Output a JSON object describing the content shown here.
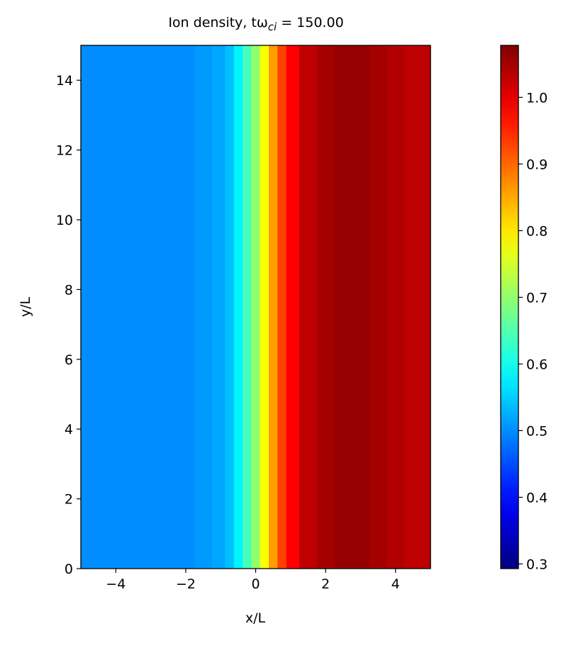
{
  "chart_data": {
    "type": "heatmap",
    "title": "Ion density, tω",
    "title_subscript": "ci",
    "title_suffix": " = 150.00",
    "x_label": "x/L",
    "y_label": "y/L",
    "x": [
      -5,
      -4,
      -3,
      -2,
      -1.5,
      -1,
      -0.75,
      -0.5,
      -0.25,
      0,
      0.25,
      0.5,
      0.75,
      1,
      1.5,
      2,
      2.5,
      3,
      3.5,
      4,
      4.5,
      5
    ],
    "values": [
      0.5,
      0.5,
      0.5,
      0.5,
      0.51,
      0.52,
      0.54,
      0.58,
      0.64,
      0.7,
      0.78,
      0.86,
      0.93,
      0.98,
      1.03,
      1.05,
      1.06,
      1.06,
      1.05,
      1.04,
      1.03,
      1.03
    ],
    "colormap": "jet",
    "xlim": [
      -5,
      5
    ],
    "ylim": [
      0,
      15
    ],
    "clim": [
      0.293,
      1.078
    ],
    "xticks": [
      {
        "value": -4,
        "label": "−4"
      },
      {
        "value": -2,
        "label": "−2"
      },
      0,
      2,
      4
    ],
    "yticks": [
      0,
      2,
      4,
      6,
      8,
      10,
      12,
      14
    ],
    "cticks": [
      0.3,
      0.4,
      0.5,
      0.6,
      0.7,
      0.8,
      0.9,
      {
        "value": 1.0,
        "label": "1.0"
      }
    ]
  }
}
